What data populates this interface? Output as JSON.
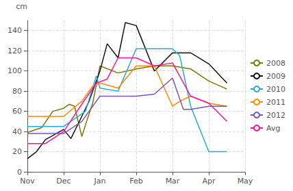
{
  "chart_data": {
    "type": "line",
    "y_label": "cm",
    "xlim": [
      0,
      6
    ],
    "xticks": [
      {
        "value": 0,
        "label": "Nov"
      },
      {
        "value": 1,
        "label": "Dec"
      },
      {
        "value": 2,
        "label": "Jan"
      },
      {
        "value": 3,
        "label": "Feb"
      },
      {
        "value": 4,
        "label": "Mar"
      },
      {
        "value": 5,
        "label": "Apr"
      },
      {
        "value": 6,
        "label": "May"
      }
    ],
    "ylim": [
      0,
      150
    ],
    "yticks": [
      0,
      20,
      40,
      60,
      80,
      100,
      120,
      140
    ],
    "grid": true,
    "legend": "right",
    "series": [
      {
        "name": "2008",
        "color": "#777700",
        "x": [
          0.0,
          0.4,
          0.7,
          1.0,
          1.15,
          1.3,
          1.5,
          1.65,
          1.8,
          2.0,
          2.5,
          3.0,
          3.5,
          4.0,
          4.5,
          5.0,
          5.5
        ],
        "values": [
          39,
          44,
          60,
          63,
          67,
          65,
          35,
          52,
          68,
          105,
          98,
          102,
          105,
          105,
          102,
          90,
          82
        ]
      },
      {
        "name": "2009",
        "color": "#111111",
        "x": [
          0.0,
          0.25,
          0.5,
          1.0,
          1.2,
          1.5,
          1.7,
          2.0,
          2.2,
          2.5,
          2.7,
          3.0,
          3.2,
          3.5,
          4.0,
          4.5,
          5.0,
          5.5
        ],
        "values": [
          13,
          20,
          32,
          42,
          33,
          55,
          70,
          100,
          127,
          113,
          148,
          145,
          127,
          100,
          118,
          118,
          107,
          88
        ]
      },
      {
        "name": "2010",
        "color": "#22aadd",
        "x": [
          0.0,
          0.5,
          1.0,
          1.4,
          1.6,
          1.9,
          2.0,
          2.5,
          3.0,
          3.5,
          4.0,
          4.2,
          4.5,
          5.0,
          5.5
        ],
        "values": [
          45,
          45,
          45,
          55,
          60,
          95,
          83,
          80,
          122,
          122,
          122,
          115,
          65,
          20,
          20
        ]
      },
      {
        "name": "2011",
        "color": "#ff8800",
        "x": [
          0.0,
          0.25,
          0.5,
          1.0,
          1.5,
          1.8,
          2.0,
          2.3,
          2.5,
          3.0,
          3.5,
          4.0,
          4.2,
          4.5,
          5.0,
          5.5
        ],
        "values": [
          55,
          55,
          55,
          55,
          70,
          85,
          88,
          85,
          83,
          105,
          105,
          65,
          70,
          75,
          68,
          65
        ]
      },
      {
        "name": "2012",
        "color": "#7755bb",
        "x": [
          0.0,
          0.5,
          1.0,
          1.5,
          2.0,
          2.5,
          3.0,
          3.5,
          4.0,
          4.3,
          4.5,
          5.0,
          5.5
        ],
        "values": [
          38,
          38,
          38,
          50,
          75,
          75,
          75,
          77,
          93,
          62,
          62,
          65,
          65
        ]
      },
      {
        "name": "Avg",
        "color": "#ff1199",
        "x": [
          0.0,
          0.5,
          1.0,
          1.5,
          1.9,
          2.2,
          2.5,
          3.0,
          3.5,
          4.0,
          4.5,
          5.0,
          5.5
        ],
        "values": [
          28,
          28,
          40,
          67,
          88,
          92,
          113,
          113,
          105,
          108,
          75,
          68,
          50
        ]
      }
    ]
  }
}
